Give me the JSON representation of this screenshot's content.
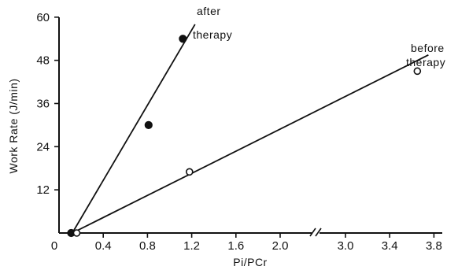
{
  "chart_data": {
    "type": "scatter",
    "xlabel": "Pi/PCr",
    "ylabel": "Work Rate (J/min)",
    "x_ticks": [
      0,
      0.4,
      0.8,
      1.2,
      1.6,
      2.0,
      3.0,
      3.4,
      3.8
    ],
    "x_tick_labels": [
      "0",
      "0.4",
      "0.8",
      "1.2",
      "1.6",
      "2.0",
      "3.0",
      "3.4",
      "3.8"
    ],
    "y_ticks": [
      12,
      24,
      36,
      48,
      60
    ],
    "y_tick_labels": [
      "12",
      "24",
      "36",
      "48",
      "60"
    ],
    "xlim": [
      0,
      3.9
    ],
    "ylim": [
      0,
      60
    ],
    "x_axis_break": [
      2.3,
      2.9
    ],
    "grid": false,
    "series": [
      {
        "name": "after therapy",
        "marker": "filled-circle",
        "points": [
          {
            "x": 0.11,
            "y": 0
          },
          {
            "x": 0.81,
            "y": 30
          },
          {
            "x": 1.12,
            "y": 54
          }
        ],
        "fit_line": [
          {
            "x": 0.12,
            "y": 0
          },
          {
            "x": 1.23,
            "y": 58
          }
        ],
        "label_lines": [
          "after",
          "therapy"
        ]
      },
      {
        "name": "before therapy",
        "marker": "open-circle",
        "points": [
          {
            "x": 0.16,
            "y": 0
          },
          {
            "x": 1.18,
            "y": 17
          },
          {
            "x": 3.65,
            "y": 45
          }
        ],
        "fit_line": [
          {
            "x": 0.12,
            "y": 0
          },
          {
            "x": 3.75,
            "y": 49.5
          }
        ],
        "label_lines": [
          "before",
          "therapy"
        ]
      }
    ]
  }
}
